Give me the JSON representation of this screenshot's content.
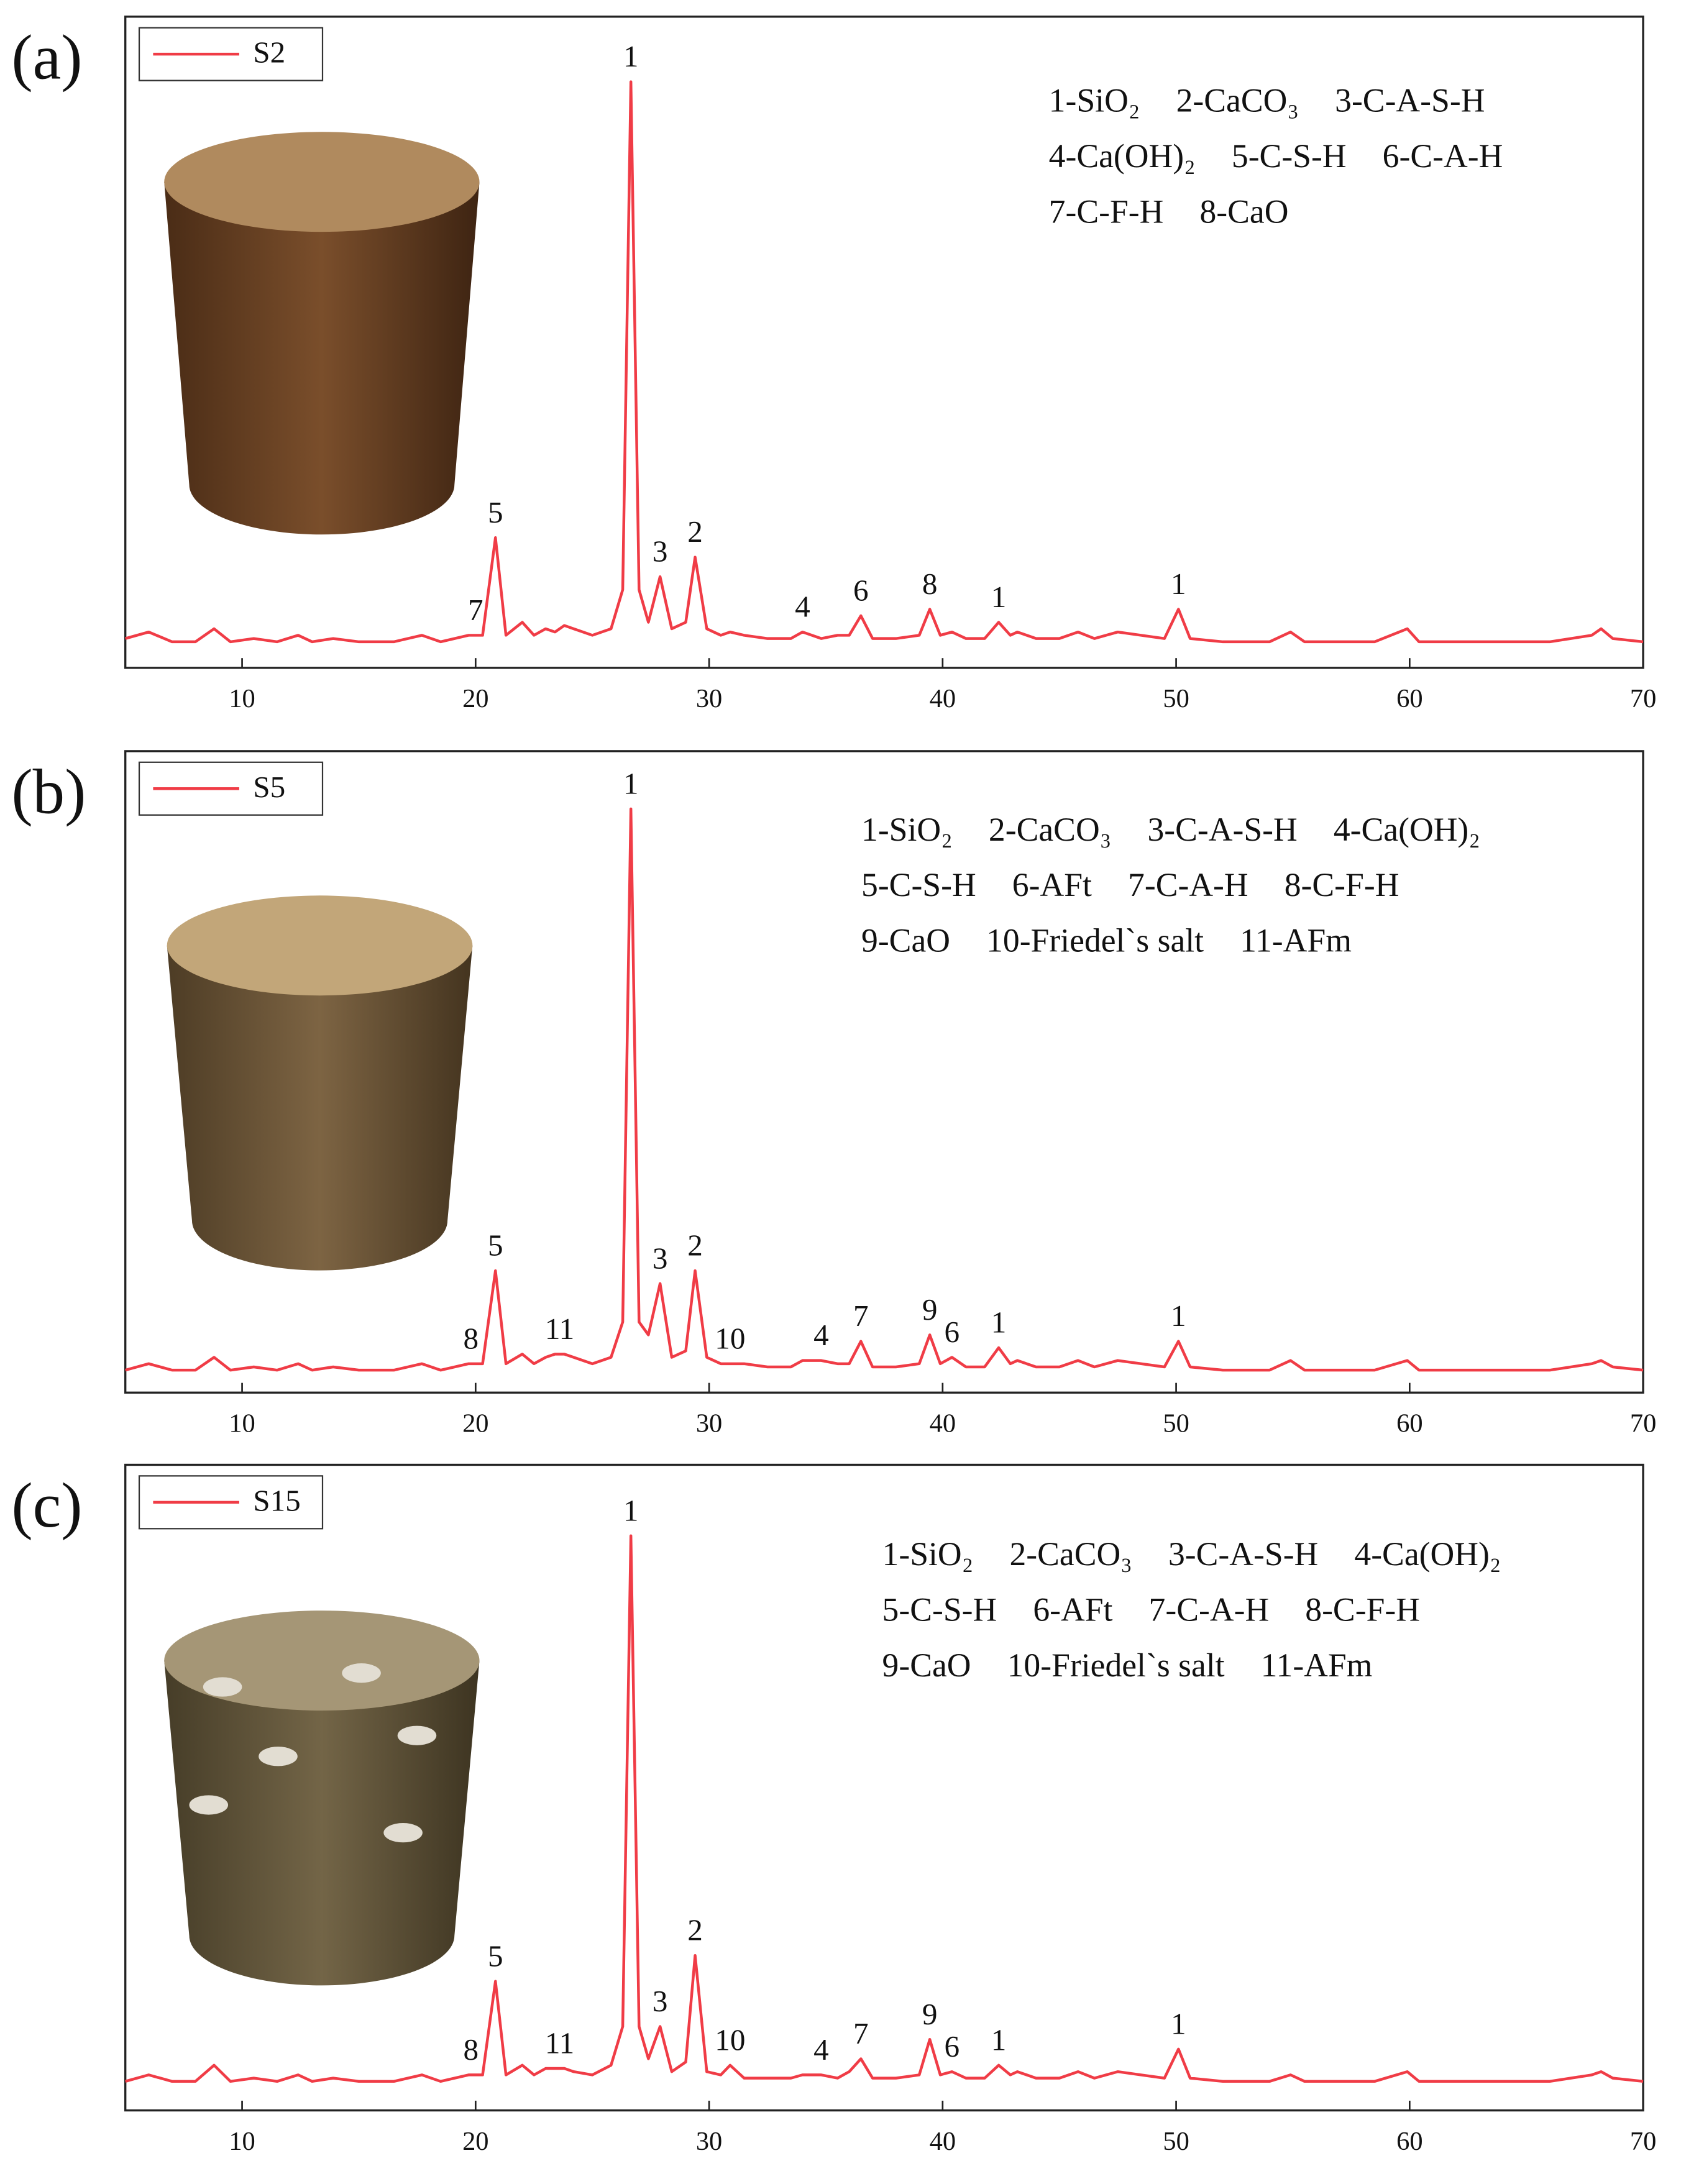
{
  "chart_data": [
    {
      "type": "line",
      "panel_label": "(a)",
      "xlim": [
        5,
        70
      ],
      "xticks": [
        10,
        20,
        30,
        40,
        50,
        60,
        70
      ],
      "ylim": [
        0,
        100
      ],
      "legend": "upper left",
      "series": [
        {
          "name": "S2",
          "color": "#f03c46",
          "x": [
            5,
            6,
            7,
            8,
            8.8,
            9.5,
            10.5,
            11.5,
            12.4,
            13,
            13.9,
            15,
            16.5,
            17.7,
            18.5,
            19.7,
            20.3,
            20.85,
            21.3,
            22,
            22.5,
            23,
            23.4,
            23.8,
            24.2,
            25,
            25.8,
            26.3,
            26.65,
            27,
            27.4,
            27.9,
            28.4,
            29,
            29.4,
            29.9,
            30.5,
            30.9,
            31.5,
            32.5,
            33.5,
            34,
            34.8,
            35.5,
            36,
            36.5,
            37,
            38,
            39,
            39.45,
            39.9,
            40.4,
            41,
            41.8,
            42.4,
            42.9,
            43.2,
            44,
            45,
            45.8,
            46.5,
            47.5,
            48.5,
            49.5,
            50.1,
            50.6,
            52,
            53,
            54,
            54.9,
            55.5,
            57,
            58.5,
            59.9,
            60.4,
            62,
            64,
            66,
            67.8,
            68.2,
            68.7,
            70
          ],
          "values": [
            4.5,
            5.5,
            4,
            4,
            6,
            4,
            4.5,
            4,
            5,
            4,
            4.5,
            4,
            4,
            5,
            4,
            5,
            5,
            20,
            5,
            7,
            5,
            6,
            5.5,
            6.5,
            6,
            5,
            6,
            12,
            90,
            12,
            7,
            14,
            6,
            7,
            17,
            6,
            5,
            5.5,
            5,
            4.5,
            4.5,
            5.5,
            4.5,
            5,
            5,
            8,
            4.5,
            4.5,
            5,
            9,
            5,
            5.5,
            4.5,
            4.5,
            7,
            5,
            5.5,
            4.5,
            4.5,
            5.5,
            4.5,
            5.5,
            5,
            4.5,
            9,
            4.5,
            4,
            4,
            4,
            5.5,
            4,
            4,
            4,
            6,
            4,
            4,
            4,
            4,
            5,
            6,
            4.5,
            4
          ]
        }
      ],
      "peak_labels": [
        {
          "label": "7",
          "x": 20
        },
        {
          "label": "5",
          "x": 20.85
        },
        {
          "label": "1",
          "x": 26.65
        },
        {
          "label": "3",
          "x": 27.9
        },
        {
          "label": "2",
          "x": 29.4
        },
        {
          "label": "4",
          "x": 34
        },
        {
          "label": "6",
          "x": 36.5
        },
        {
          "label": "8",
          "x": 39.45
        },
        {
          "label": "1",
          "x": 42.4
        },
        {
          "label": "1",
          "x": 50.1
        }
      ],
      "phase_key": [
        [
          "1-SiO₂",
          "2-CaCO₃",
          "3-C-A-S-H"
        ],
        [
          "4-Ca(OH)₂",
          "5-C-S-H",
          "6-C-A-H"
        ],
        [
          "7-C-F-H",
          "8-CaO"
        ]
      ]
    },
    {
      "type": "line",
      "panel_label": "(b)",
      "xlim": [
        5,
        70
      ],
      "xticks": [
        10,
        20,
        30,
        40,
        50,
        60,
        70
      ],
      "ylim": [
        0,
        100
      ],
      "legend": "upper left",
      "series": [
        {
          "name": "S5",
          "color": "#f03c46",
          "x": [
            5,
            6,
            7,
            8,
            8.8,
            9.5,
            10.5,
            11.5,
            12.4,
            13,
            13.9,
            15,
            16.5,
            17.7,
            18.5,
            19.7,
            20.3,
            20.85,
            21.3,
            22,
            22.5,
            23,
            23.4,
            23.8,
            24.2,
            25,
            25.8,
            26.3,
            26.65,
            27,
            27.4,
            27.9,
            28.4,
            29,
            29.4,
            29.9,
            30.5,
            30.9,
            31.5,
            32.5,
            33.5,
            34,
            34.8,
            35.5,
            36,
            36.5,
            37,
            38,
            39,
            39.45,
            39.9,
            40.4,
            41,
            41.8,
            42.4,
            42.9,
            43.2,
            44,
            45,
            45.8,
            46.5,
            47.5,
            48.5,
            49.5,
            50.1,
            50.6,
            52,
            53,
            54,
            54.9,
            55.5,
            57,
            58.5,
            59.9,
            60.4,
            62,
            64,
            66,
            67.8,
            68.2,
            68.7,
            70
          ],
          "values": [
            3.5,
            4.5,
            3.5,
            3.5,
            5.5,
            3.5,
            4,
            3.5,
            4.5,
            3.5,
            4,
            3.5,
            3.5,
            4.5,
            3.5,
            4.5,
            4.5,
            19,
            4.5,
            6,
            4.5,
            5.5,
            6,
            6,
            5.5,
            4.5,
            5.5,
            11,
            91,
            11,
            9,
            17,
            5.5,
            6.5,
            19,
            5.5,
            4.5,
            4.5,
            4.5,
            4,
            4,
            5,
            5,
            4.5,
            4.5,
            8,
            4,
            4,
            4.5,
            9,
            4.5,
            5.5,
            4,
            4,
            7,
            4.5,
            5,
            4,
            4,
            5,
            4,
            5,
            4.5,
            4,
            8,
            4,
            3.5,
            3.5,
            3.5,
            5,
            3.5,
            3.5,
            3.5,
            5,
            3.5,
            3.5,
            3.5,
            3.5,
            4.5,
            5,
            4,
            3.5
          ]
        }
      ],
      "peak_labels": [
        {
          "label": "8",
          "x": 19.8
        },
        {
          "label": "5",
          "x": 20.85
        },
        {
          "label": "11",
          "x": 23.6
        },
        {
          "label": "1",
          "x": 26.65
        },
        {
          "label": "3",
          "x": 27.9
        },
        {
          "label": "2",
          "x": 29.4
        },
        {
          "label": "10",
          "x": 30.9
        },
        {
          "label": "4",
          "x": 34.8
        },
        {
          "label": "7",
          "x": 36.5
        },
        {
          "label": "9",
          "x": 39.45
        },
        {
          "label": "6",
          "x": 40.4
        },
        {
          "label": "1",
          "x": 42.4
        },
        {
          "label": "1",
          "x": 50.1
        }
      ],
      "phase_key": [
        [
          "1-SiO₂",
          "2-CaCO₃",
          "3-C-A-S-H",
          "4-Ca(OH)₂"
        ],
        [
          "5-C-S-H",
          "6-AFt",
          "7-C-A-H",
          "8-C-F-H"
        ],
        [
          "9-CaO",
          "10-Friedel`s salt",
          "11-AFm"
        ]
      ]
    },
    {
      "type": "line",
      "panel_label": "(c)",
      "xlim": [
        5,
        70
      ],
      "xticks": [
        10,
        20,
        30,
        40,
        50,
        60,
        70
      ],
      "ylim": [
        0,
        100
      ],
      "legend": "upper left",
      "series": [
        {
          "name": "S15",
          "color": "#f03c46",
          "x": [
            5,
            6,
            7,
            8,
            8.8,
            9.5,
            10.5,
            11.5,
            12.4,
            13,
            13.9,
            15,
            16.5,
            17.7,
            18.5,
            19.7,
            20.3,
            20.85,
            21.3,
            22,
            22.5,
            23,
            23.4,
            23.8,
            24.2,
            25,
            25.8,
            26.3,
            26.65,
            27,
            27.4,
            27.9,
            28.4,
            29,
            29.4,
            29.9,
            30.5,
            30.9,
            31.5,
            32.5,
            33.5,
            34,
            34.8,
            35.5,
            36,
            36.5,
            37,
            38,
            39,
            39.45,
            39.9,
            40.4,
            41,
            41.8,
            42.4,
            42.9,
            43.2,
            44,
            45,
            45.8,
            46.5,
            47.5,
            48.5,
            49.5,
            50.1,
            50.6,
            52,
            53,
            54,
            54.9,
            55.5,
            57,
            58.5,
            59.9,
            60.4,
            62,
            64,
            66,
            67.8,
            68.2,
            68.7,
            70
          ],
          "values": [
            4.5,
            5.5,
            4.5,
            4.5,
            7,
            4.5,
            5,
            4.5,
            5.5,
            4.5,
            5,
            4.5,
            4.5,
            5.5,
            4.5,
            5.5,
            5.5,
            20,
            5.5,
            7,
            5.5,
            6.5,
            6.5,
            6.5,
            6,
            5.5,
            7,
            13,
            89,
            13,
            8,
            13,
            6,
            7.5,
            24,
            6,
            5.5,
            7,
            5,
            5,
            5,
            5.5,
            5.5,
            5,
            6,
            8,
            5,
            5,
            5.5,
            11,
            5.5,
            6,
            5,
            5,
            7,
            5.5,
            6,
            5,
            5,
            6,
            5,
            6,
            5.5,
            5,
            9.5,
            5,
            4.5,
            4.5,
            4.5,
            5.5,
            4.5,
            4.5,
            4.5,
            6,
            4.5,
            4.5,
            4.5,
            4.5,
            5.5,
            6,
            5,
            4.5
          ]
        }
      ],
      "peak_labels": [
        {
          "label": "8",
          "x": 19.8
        },
        {
          "label": "5",
          "x": 20.85
        },
        {
          "label": "11",
          "x": 23.6
        },
        {
          "label": "1",
          "x": 26.65
        },
        {
          "label": "3",
          "x": 27.9
        },
        {
          "label": "2",
          "x": 29.4
        },
        {
          "label": "10",
          "x": 30.9
        },
        {
          "label": "4",
          "x": 34.8
        },
        {
          "label": "7",
          "x": 36.5
        },
        {
          "label": "9",
          "x": 39.45
        },
        {
          "label": "6",
          "x": 40.4
        },
        {
          "label": "1",
          "x": 42.4
        },
        {
          "label": "1",
          "x": 50.1
        }
      ],
      "phase_key": [
        [
          "1-SiO₂",
          "2-CaCO₃",
          "3-C-A-S-H",
          "4-Ca(OH)₂"
        ],
        [
          "5-C-S-H",
          "6-AFt",
          "7-C-A-H",
          "8-C-F-H"
        ],
        [
          "9-CaO",
          "10-Friedel`s salt",
          "11-AFm"
        ]
      ]
    }
  ]
}
